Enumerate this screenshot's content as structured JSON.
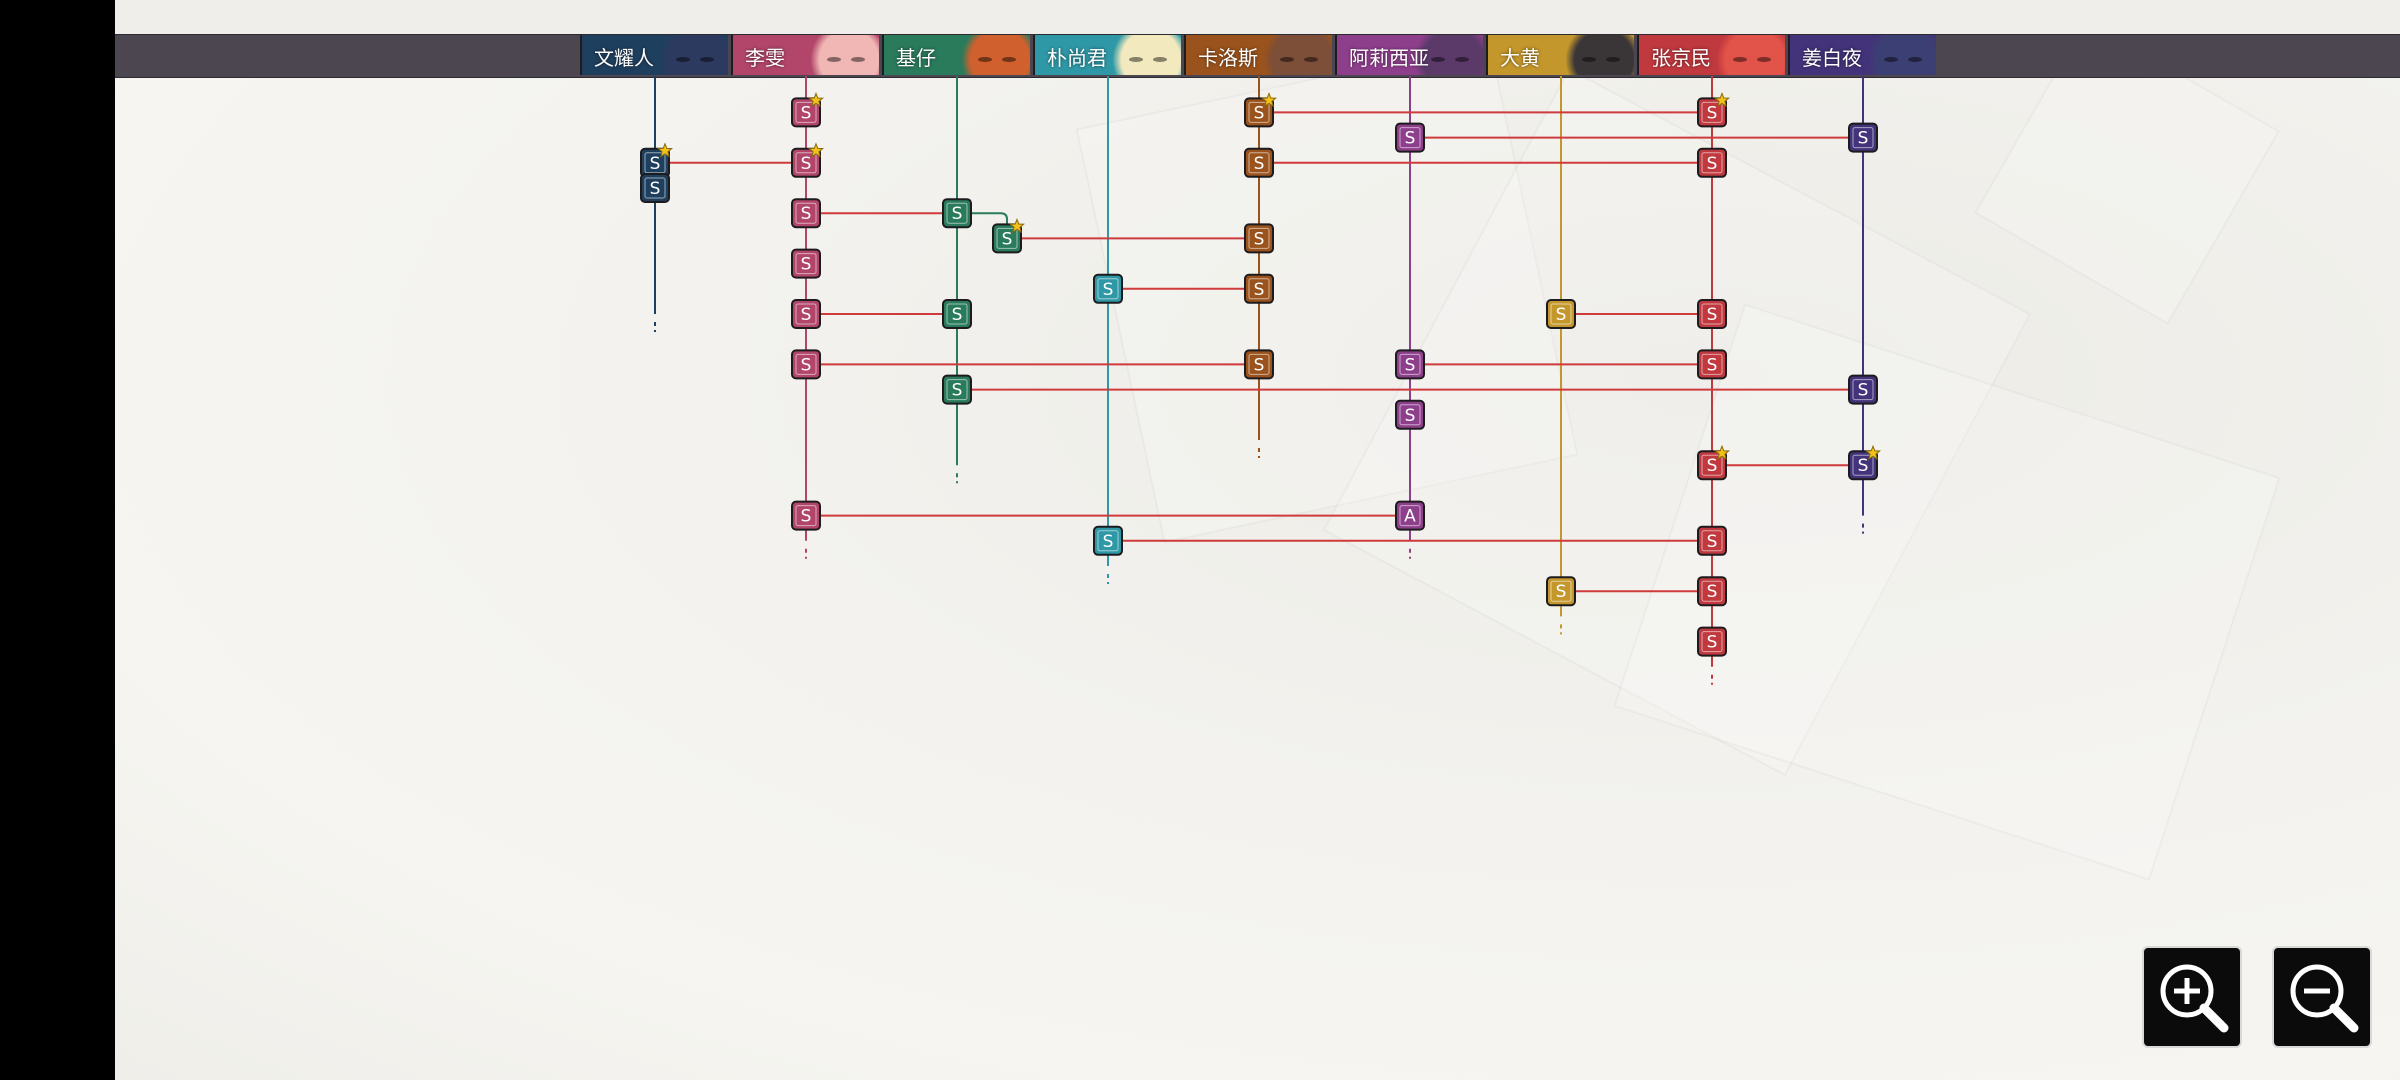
{
  "characters": [
    {
      "id": "wen",
      "name": "文耀人",
      "color": "#1f3f5e",
      "portrait": "#2c3a60"
    },
    {
      "id": "li",
      "name": "李雯",
      "color": "#b1466a",
      "portrait": "#f0b7b4"
    },
    {
      "id": "ji",
      "name": "基仔",
      "color": "#2a7a5c",
      "portrait": "#d0602d"
    },
    {
      "id": "piao",
      "name": "朴尚君",
      "color": "#2f98a6",
      "portrait": "#f2e9be"
    },
    {
      "id": "ka",
      "name": "卡洛斯",
      "color": "#9a531c",
      "portrait": "#7d4e38"
    },
    {
      "id": "a",
      "name": "阿莉西亚",
      "color": "#8e3f8c",
      "portrait": "#5b3a6a"
    },
    {
      "id": "da",
      "name": "大黄",
      "color": "#c4972c",
      "portrait": "#3a3638"
    },
    {
      "id": "zhang",
      "name": "张京民",
      "color": "#c0393f",
      "portrait": "#e2534a"
    },
    {
      "id": "jiang",
      "name": "姜白夜",
      "color": "#43337a",
      "portrait": "#3c3f73"
    }
  ],
  "line_end": {
    "wen": 10,
    "li": 19,
    "ji": 16,
    "piao": 20,
    "ka": 15,
    "a": 19,
    "da": 22,
    "zhang": 24,
    "jiang": 18
  },
  "nodes": [
    {
      "char": "li",
      "row": 2,
      "rank": "S",
      "star": true
    },
    {
      "char": "ka",
      "row": 2,
      "rank": "S",
      "star": true
    },
    {
      "char": "zhang",
      "row": 2,
      "rank": "S",
      "star": true
    },
    {
      "char": "a",
      "row": 3,
      "rank": "S"
    },
    {
      "char": "jiang",
      "row": 3,
      "rank": "S"
    },
    {
      "char": "wen",
      "row": 4,
      "rank": "S",
      "star": true
    },
    {
      "char": "li",
      "row": 4,
      "rank": "S",
      "star": true
    },
    {
      "char": "ka",
      "row": 4,
      "rank": "S"
    },
    {
      "char": "zhang",
      "row": 4,
      "rank": "S"
    },
    {
      "char": "wen",
      "row": 5,
      "rank": "S"
    },
    {
      "char": "li",
      "row": 6,
      "rank": "S"
    },
    {
      "char": "ji",
      "row": 6,
      "rank": "S"
    },
    {
      "char": "ji",
      "row": 7,
      "rank": "S",
      "star": true,
      "offset": true
    },
    {
      "char": "ka",
      "row": 7,
      "rank": "S"
    },
    {
      "char": "li",
      "row": 8,
      "rank": "S"
    },
    {
      "char": "piao",
      "row": 9,
      "rank": "S"
    },
    {
      "char": "ka",
      "row": 9,
      "rank": "S"
    },
    {
      "char": "li",
      "row": 10,
      "rank": "S"
    },
    {
      "char": "ji",
      "row": 10,
      "rank": "S"
    },
    {
      "char": "da",
      "row": 10,
      "rank": "S"
    },
    {
      "char": "zhang",
      "row": 10,
      "rank": "S"
    },
    {
      "char": "li",
      "row": 12,
      "rank": "S"
    },
    {
      "char": "ka",
      "row": 12,
      "rank": "S"
    },
    {
      "char": "a",
      "row": 12,
      "rank": "S"
    },
    {
      "char": "zhang",
      "row": 12,
      "rank": "S"
    },
    {
      "char": "ji",
      "row": 13,
      "rank": "S"
    },
    {
      "char": "jiang",
      "row": 13,
      "rank": "S"
    },
    {
      "char": "a",
      "row": 14,
      "rank": "S"
    },
    {
      "char": "zhang",
      "row": 16,
      "rank": "S",
      "star": true
    },
    {
      "char": "jiang",
      "row": 16,
      "rank": "S",
      "star": true
    },
    {
      "char": "li",
      "row": 18,
      "rank": "S"
    },
    {
      "char": "a",
      "row": 18,
      "rank": "A"
    },
    {
      "char": "piao",
      "row": 19,
      "rank": "S"
    },
    {
      "char": "zhang",
      "row": 19,
      "rank": "S"
    },
    {
      "char": "da",
      "row": 21,
      "rank": "S"
    },
    {
      "char": "zhang",
      "row": 21,
      "rank": "S"
    },
    {
      "char": "zhang",
      "row": 23,
      "rank": "S"
    }
  ],
  "links": [
    {
      "a": "ka",
      "b": "zhang",
      "row": 2
    },
    {
      "a": "a",
      "b": "jiang",
      "row": 3
    },
    {
      "a": "wen",
      "b": "li",
      "row": 4
    },
    {
      "a": "ka",
      "b": "zhang",
      "row": 4
    },
    {
      "a": "li",
      "b": "ji",
      "row": 6
    },
    {
      "a": "ji_off",
      "b": "ka",
      "row": 7
    },
    {
      "a": "piao",
      "b": "ka",
      "row": 9
    },
    {
      "a": "li",
      "b": "ji",
      "row": 10
    },
    {
      "a": "da",
      "b": "zhang",
      "row": 10
    },
    {
      "a": "li",
      "b": "ka",
      "row": 12
    },
    {
      "a": "a",
      "b": "zhang",
      "row": 12
    },
    {
      "a": "ji",
      "b": "jiang",
      "row": 13
    },
    {
      "a": "zhang",
      "b": "jiang",
      "row": 16
    },
    {
      "a": "li",
      "b": "a",
      "row": 18
    },
    {
      "a": "piao",
      "b": "zhang",
      "row": 19
    },
    {
      "a": "da",
      "b": "zhang",
      "row": 21
    }
  ],
  "controls": {
    "zoom_in_icon": "zoom-in-icon",
    "zoom_out_icon": "zoom-out-icon"
  }
}
